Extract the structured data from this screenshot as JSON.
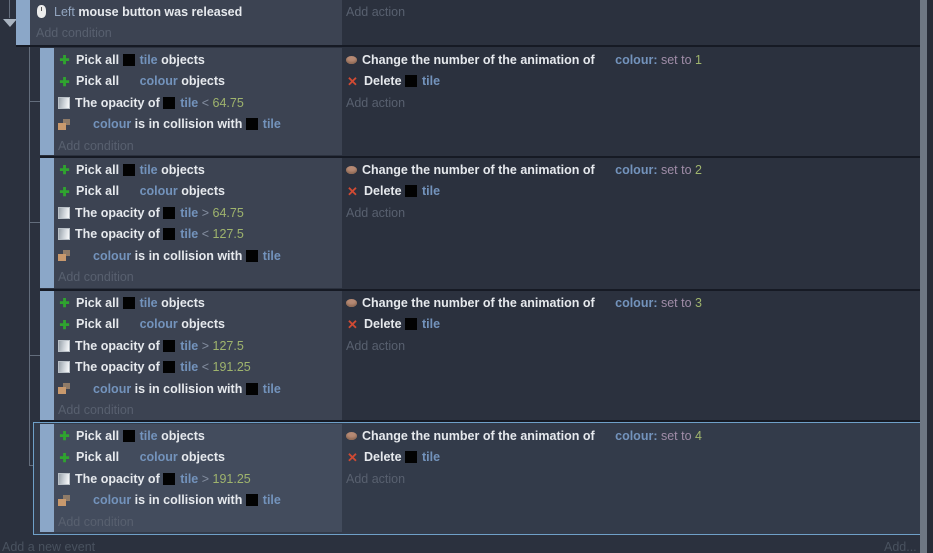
{
  "app": "event-sheet-editor",
  "colors": {
    "background": "#2b313e",
    "condition_block": "#3c4352",
    "selected_block": "#434c5d",
    "selection_border": "#6fa0c8",
    "event_margin_bar": "#8ba7c8",
    "object_link": "#7393bc",
    "number_value": "#9fb46d",
    "placeholder": "#58606f",
    "pick_icon_green": "#2fa42f",
    "delete_icon_red": "#d04a33"
  },
  "events": [
    {
      "kind": "top",
      "conditions": [
        [
          {
            "icon": "mouse"
          },
          {
            "t": "Left",
            "s": "param"
          },
          {
            "t": " mouse button was released",
            "s": "plain"
          }
        ]
      ],
      "actions": [],
      "add_condition": "Add condition",
      "add_action": "Add action"
    },
    {
      "kind": "sub",
      "conditions": [
        [
          {
            "icon": "pick"
          },
          {
            "t": "Pick all ",
            "s": "plain"
          },
          {
            "icon": "tile"
          },
          {
            "t": "tile",
            "s": "object"
          },
          {
            "t": " objects",
            "s": "plain"
          }
        ],
        [
          {
            "icon": "pick"
          },
          {
            "t": "Pick all ",
            "s": "plain"
          },
          {
            "icon": "blank"
          },
          {
            "t": "colour",
            "s": "object"
          },
          {
            "t": " objects",
            "s": "plain"
          }
        ],
        [
          {
            "icon": "opacity"
          },
          {
            "t": "The opacity of ",
            "s": "plain"
          },
          {
            "icon": "tile"
          },
          {
            "t": "tile",
            "s": "object"
          },
          {
            "t": " < ",
            "s": "op"
          },
          {
            "t": "64.75",
            "s": "num"
          }
        ],
        [
          {
            "icon": "collision"
          },
          {
            "icon": "blank"
          },
          {
            "t": "colour",
            "s": "object"
          },
          {
            "t": " is in collision with ",
            "s": "plain"
          },
          {
            "icon": "tile"
          },
          {
            "t": "tile",
            "s": "object"
          }
        ]
      ],
      "actions": [
        [
          {
            "icon": "anim"
          },
          {
            "t": "Change the number of the animation of ",
            "s": "plain"
          },
          {
            "icon": "blank"
          },
          {
            "t": "colour:",
            "s": "object"
          },
          {
            "t": " set to ",
            "s": "setto"
          },
          {
            "t": "1",
            "s": "num"
          }
        ],
        [
          {
            "icon": "delete"
          },
          {
            "t": "Delete ",
            "s": "plain"
          },
          {
            "icon": "tile"
          },
          {
            "t": "tile",
            "s": "object"
          }
        ]
      ],
      "add_condition": "Add condition",
      "add_action": "Add action"
    },
    {
      "kind": "sub",
      "conditions": [
        [
          {
            "icon": "pick"
          },
          {
            "t": "Pick all ",
            "s": "plain"
          },
          {
            "icon": "tile"
          },
          {
            "t": "tile",
            "s": "object"
          },
          {
            "t": " objects",
            "s": "plain"
          }
        ],
        [
          {
            "icon": "pick"
          },
          {
            "t": "Pick all ",
            "s": "plain"
          },
          {
            "icon": "blank"
          },
          {
            "t": "colour",
            "s": "object"
          },
          {
            "t": " objects",
            "s": "plain"
          }
        ],
        [
          {
            "icon": "opacity"
          },
          {
            "t": "The opacity of ",
            "s": "plain"
          },
          {
            "icon": "tile"
          },
          {
            "t": "tile",
            "s": "object"
          },
          {
            "t": " > ",
            "s": "op"
          },
          {
            "t": "64.75",
            "s": "num"
          }
        ],
        [
          {
            "icon": "opacity"
          },
          {
            "t": "The opacity of ",
            "s": "plain"
          },
          {
            "icon": "tile"
          },
          {
            "t": "tile",
            "s": "object"
          },
          {
            "t": " < ",
            "s": "op"
          },
          {
            "t": "127.5",
            "s": "num"
          }
        ],
        [
          {
            "icon": "collision"
          },
          {
            "icon": "blank"
          },
          {
            "t": "colour",
            "s": "object"
          },
          {
            "t": " is in collision with ",
            "s": "plain"
          },
          {
            "icon": "tile"
          },
          {
            "t": "tile",
            "s": "object"
          }
        ]
      ],
      "actions": [
        [
          {
            "icon": "anim"
          },
          {
            "t": "Change the number of the animation of ",
            "s": "plain"
          },
          {
            "icon": "blank"
          },
          {
            "t": "colour:",
            "s": "object"
          },
          {
            "t": " set to ",
            "s": "setto"
          },
          {
            "t": "2",
            "s": "num"
          }
        ],
        [
          {
            "icon": "delete"
          },
          {
            "t": "Delete ",
            "s": "plain"
          },
          {
            "icon": "tile"
          },
          {
            "t": "tile",
            "s": "object"
          }
        ]
      ],
      "add_condition": "Add condition",
      "add_action": "Add action"
    },
    {
      "kind": "sub",
      "conditions": [
        [
          {
            "icon": "pick"
          },
          {
            "t": "Pick all ",
            "s": "plain"
          },
          {
            "icon": "tile"
          },
          {
            "t": "tile",
            "s": "object"
          },
          {
            "t": " objects",
            "s": "plain"
          }
        ],
        [
          {
            "icon": "pick"
          },
          {
            "t": "Pick all ",
            "s": "plain"
          },
          {
            "icon": "blank"
          },
          {
            "t": "colour",
            "s": "object"
          },
          {
            "t": " objects",
            "s": "plain"
          }
        ],
        [
          {
            "icon": "opacity"
          },
          {
            "t": "The opacity of ",
            "s": "plain"
          },
          {
            "icon": "tile"
          },
          {
            "t": "tile",
            "s": "object"
          },
          {
            "t": " > ",
            "s": "op"
          },
          {
            "t": "127.5",
            "s": "num"
          }
        ],
        [
          {
            "icon": "opacity"
          },
          {
            "t": "The opacity of ",
            "s": "plain"
          },
          {
            "icon": "tile"
          },
          {
            "t": "tile",
            "s": "object"
          },
          {
            "t": " < ",
            "s": "op"
          },
          {
            "t": "191.25",
            "s": "num"
          }
        ],
        [
          {
            "icon": "collision"
          },
          {
            "icon": "blank"
          },
          {
            "t": "colour",
            "s": "object"
          },
          {
            "t": " is in collision with ",
            "s": "plain"
          },
          {
            "icon": "tile"
          },
          {
            "t": "tile",
            "s": "object"
          }
        ]
      ],
      "actions": [
        [
          {
            "icon": "anim"
          },
          {
            "t": "Change the number of the animation of ",
            "s": "plain"
          },
          {
            "icon": "blank"
          },
          {
            "t": "colour:",
            "s": "object"
          },
          {
            "t": " set to ",
            "s": "setto"
          },
          {
            "t": "3",
            "s": "num"
          }
        ],
        [
          {
            "icon": "delete"
          },
          {
            "t": "Delete ",
            "s": "plain"
          },
          {
            "icon": "tile"
          },
          {
            "t": "tile",
            "s": "object"
          }
        ]
      ],
      "add_condition": "Add condition",
      "add_action": "Add action"
    },
    {
      "kind": "sub",
      "selected": true,
      "conditions": [
        [
          {
            "icon": "pick"
          },
          {
            "t": "Pick all ",
            "s": "plain"
          },
          {
            "icon": "tile"
          },
          {
            "t": "tile",
            "s": "object"
          },
          {
            "t": " objects",
            "s": "plain"
          }
        ],
        [
          {
            "icon": "pick"
          },
          {
            "t": "Pick all ",
            "s": "plain"
          },
          {
            "icon": "blank"
          },
          {
            "t": "colour",
            "s": "object"
          },
          {
            "t": " objects",
            "s": "plain"
          }
        ],
        [
          {
            "icon": "opacity"
          },
          {
            "t": "The opacity of ",
            "s": "plain"
          },
          {
            "icon": "tile"
          },
          {
            "t": "tile",
            "s": "object"
          },
          {
            "t": " > ",
            "s": "op"
          },
          {
            "t": "191.25",
            "s": "num"
          }
        ],
        [
          {
            "icon": "collision"
          },
          {
            "icon": "blank"
          },
          {
            "t": "colour",
            "s": "object"
          },
          {
            "t": " is in collision with ",
            "s": "plain"
          },
          {
            "icon": "tile"
          },
          {
            "t": "tile",
            "s": "object"
          }
        ]
      ],
      "actions": [
        [
          {
            "icon": "anim"
          },
          {
            "t": "Change the number of the animation of ",
            "s": "plain"
          },
          {
            "icon": "blank"
          },
          {
            "t": "colour:",
            "s": "object"
          },
          {
            "t": " set to ",
            "s": "setto"
          },
          {
            "t": "4",
            "s": "num"
          }
        ],
        [
          {
            "icon": "delete"
          },
          {
            "t": "Delete ",
            "s": "plain"
          },
          {
            "icon": "tile"
          },
          {
            "t": "tile",
            "s": "object"
          }
        ]
      ],
      "add_condition": "Add condition",
      "add_action": "Add action"
    }
  ],
  "footer": {
    "add_new_event": "Add a new event",
    "add": "Add..."
  }
}
